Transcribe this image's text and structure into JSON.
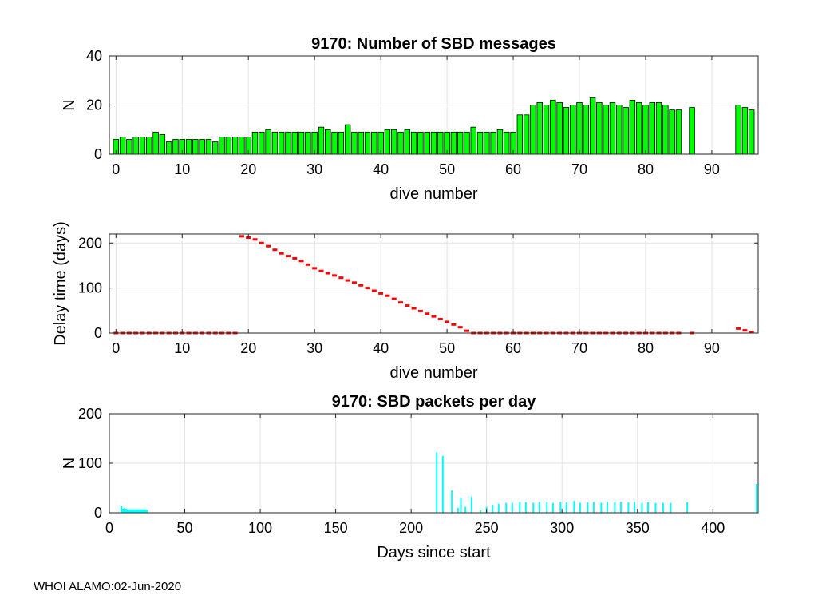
{
  "footer": "WHOI ALAMO:02-Jun-2020",
  "colors": {
    "bars": "#00ff00",
    "delay": "#ff0000",
    "packets": "#00ffff",
    "grid": "#e3e3e3",
    "axis": "#262626"
  },
  "chart_data": [
    {
      "type": "bar",
      "title": "9170: Number of SBD messages",
      "xlabel": "dive number",
      "ylabel": "N",
      "xlim": [
        -1,
        97
      ],
      "ylim": [
        0,
        40
      ],
      "xticks": [
        0,
        10,
        20,
        30,
        40,
        50,
        60,
        70,
        80,
        90
      ],
      "yticks": [
        0,
        20,
        40
      ],
      "grid": true,
      "x": [
        0,
        1,
        2,
        3,
        4,
        5,
        6,
        7,
        8,
        9,
        10,
        11,
        12,
        13,
        14,
        15,
        16,
        17,
        18,
        19,
        20,
        21,
        22,
        23,
        24,
        25,
        26,
        27,
        28,
        29,
        30,
        31,
        32,
        33,
        34,
        35,
        36,
        37,
        38,
        39,
        40,
        41,
        42,
        43,
        44,
        45,
        46,
        47,
        48,
        49,
        50,
        51,
        52,
        53,
        54,
        55,
        56,
        57,
        58,
        59,
        60,
        61,
        62,
        63,
        64,
        65,
        66,
        67,
        68,
        69,
        70,
        71,
        72,
        73,
        74,
        75,
        76,
        77,
        78,
        79,
        80,
        81,
        82,
        83,
        84,
        85,
        87,
        94,
        95,
        96
      ],
      "values": [
        6,
        7,
        6,
        7,
        7,
        7,
        9,
        8,
        5,
        6,
        6,
        6,
        6,
        6,
        6,
        5,
        7,
        7,
        7,
        7,
        7,
        9,
        9,
        10,
        9,
        9,
        9,
        9,
        9,
        9,
        9,
        11,
        10,
        9,
        9,
        12,
        9,
        9,
        9,
        9,
        9,
        10,
        10,
        9,
        10,
        9,
        9,
        9,
        9,
        9,
        9,
        9,
        9,
        9,
        11,
        9,
        9,
        9,
        10,
        9,
        9,
        16,
        16,
        20,
        21,
        20,
        22,
        21,
        19,
        20,
        21,
        20,
        23,
        21,
        20,
        21,
        20,
        19,
        22,
        21,
        20,
        21,
        21,
        20,
        18,
        18,
        19,
        20,
        19,
        18
      ]
    },
    {
      "type": "scatter",
      "title": "",
      "xlabel": "dive number",
      "ylabel": "Delay time (days)",
      "xlim": [
        -1,
        97
      ],
      "ylim": [
        0,
        220
      ],
      "xticks": [
        0,
        10,
        20,
        30,
        40,
        50,
        60,
        70,
        80,
        90
      ],
      "yticks": [
        0,
        100,
        200
      ],
      "grid": true,
      "marker": "dot",
      "segments": [
        {
          "x": [
            0,
            1,
            2,
            3,
            4,
            5,
            6,
            7,
            8,
            9,
            10,
            11,
            12,
            13,
            14,
            15,
            16,
            17,
            18
          ],
          "y": [
            0,
            0,
            0,
            0,
            0,
            0,
            0,
            0,
            0,
            0,
            0,
            0,
            0,
            0,
            0,
            0,
            0,
            0,
            0
          ]
        },
        {
          "x": [
            19,
            20,
            21,
            22,
            23,
            24,
            25,
            26,
            27,
            28,
            29,
            30,
            31,
            32,
            33,
            34,
            35,
            36,
            37,
            38,
            39,
            40,
            41,
            42,
            43,
            44,
            45,
            46,
            47,
            48,
            49,
            50,
            51,
            52,
            53
          ],
          "y": [
            215,
            212,
            208,
            200,
            193,
            185,
            177,
            171,
            166,
            160,
            152,
            144,
            138,
            133,
            128,
            123,
            117,
            112,
            106,
            100,
            94,
            88,
            83,
            76,
            68,
            61,
            55,
            49,
            43,
            37,
            31,
            25,
            19,
            13,
            5
          ]
        },
        {
          "x": [
            54,
            55,
            56,
            57,
            58,
            59,
            60,
            61,
            62,
            63,
            64,
            65,
            66,
            67,
            68,
            69,
            70,
            71,
            72,
            73,
            74,
            75,
            76,
            77,
            78,
            79,
            80,
            81,
            82,
            83,
            84,
            85,
            87
          ],
          "y": [
            0,
            0,
            0,
            0,
            0,
            0,
            0,
            0,
            0,
            0,
            0,
            0,
            0,
            0,
            0,
            0,
            0,
            0,
            0,
            0,
            0,
            0,
            0,
            0,
            0,
            0,
            0,
            0,
            0,
            0,
            0,
            0,
            0
          ]
        },
        {
          "x": [
            94,
            95,
            96
          ],
          "y": [
            10,
            6,
            2
          ]
        }
      ]
    },
    {
      "type": "bar",
      "title": "9170: SBD packets per day",
      "xlabel": "Days since start",
      "ylabel": "N",
      "xlim": [
        0,
        430
      ],
      "ylim": [
        0,
        200
      ],
      "xticks": [
        0,
        50,
        100,
        150,
        200,
        250,
        300,
        350,
        400
      ],
      "yticks": [
        0,
        100,
        200
      ],
      "grid": true,
      "x": [
        8,
        9,
        10,
        11,
        12,
        13,
        14,
        15,
        16,
        17,
        18,
        19,
        20,
        21,
        22,
        23,
        24,
        25,
        217,
        221,
        227,
        231,
        233,
        236,
        240,
        246,
        250,
        254,
        258,
        263,
        267,
        272,
        276,
        281,
        285,
        290,
        294,
        299,
        303,
        308,
        312,
        317,
        321,
        326,
        330,
        335,
        339,
        344,
        348,
        353,
        357,
        362,
        367,
        372,
        383,
        429
      ],
      "values": [
        14,
        8,
        9,
        8,
        7,
        7,
        7,
        7,
        7,
        7,
        7,
        7,
        7,
        7,
        7,
        7,
        7,
        6,
        122,
        115,
        45,
        10,
        30,
        12,
        32,
        5,
        12,
        16,
        18,
        20,
        20,
        22,
        21,
        20,
        22,
        21,
        20,
        22,
        21,
        24,
        20,
        21,
        22,
        20,
        22,
        21,
        22,
        21,
        22,
        20,
        21,
        20,
        20,
        20,
        21,
        58
      ]
    }
  ]
}
